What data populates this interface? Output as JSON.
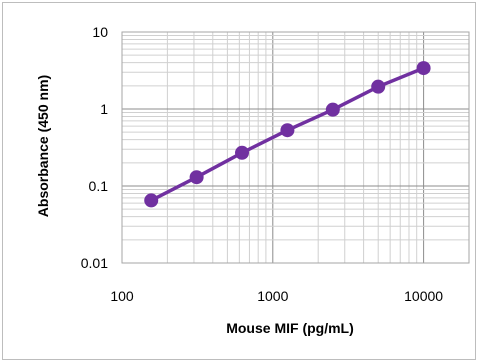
{
  "chart_data": {
    "type": "scatter",
    "xlabel": "Mouse MIF (pg/mL)",
    "ylabel": "Absorbance (450 nm)",
    "x_scale": "log",
    "y_scale": "log",
    "xlim": [
      100,
      20000
    ],
    "ylim": [
      0.01,
      10
    ],
    "grid": true,
    "x_ticks": [
      "100",
      "1000",
      "10000"
    ],
    "y_ticks": [
      "10",
      "1",
      "0.1",
      "0.01"
    ],
    "series": [
      {
        "color": "#7030a0",
        "x": [
          156.25,
          312.5,
          625,
          1250,
          2500,
          5000,
          10000
        ],
        "y": [
          0.065,
          0.13,
          0.27,
          0.53,
          0.98,
          1.95,
          3.4
        ]
      }
    ]
  }
}
